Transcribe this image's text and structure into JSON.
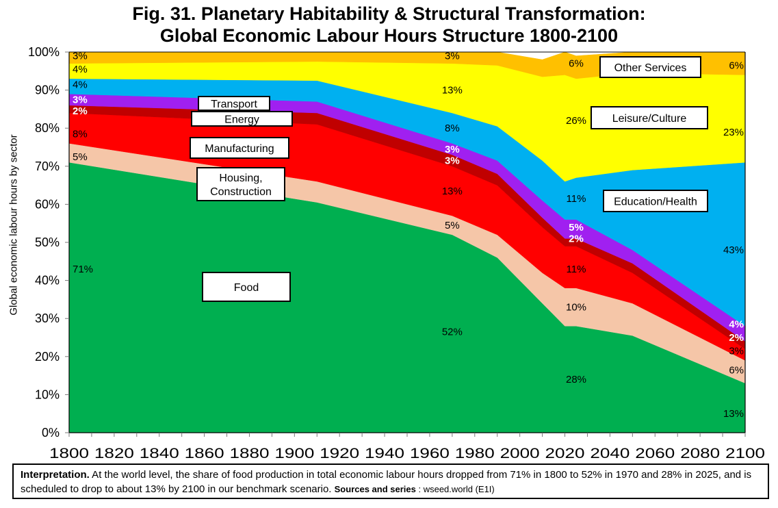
{
  "title_line1": "Fig. 31. Planetary Habitability & Structural Transformation:",
  "title_line2": "Global Economic Labour Hours Structure 1800-2100",
  "interpretation": {
    "lead": "Interpretation.",
    "text": " At the world level, the share of food production in total economic labour hours dropped from 71% in 1800 to 52% in 1970 and 28% in 2025, and is scheduled to drop to about 13% by 2100 in our benchmark scenario. ",
    "sources_label": "Sources and series",
    "sources_value": " : wseed.world (E1I)"
  },
  "chart_data": {
    "type": "area",
    "stacked": true,
    "title": "Fig. 31. Planetary Habitability & Structural Transformation: Global Economic Labour Hours Structure 1800-2100",
    "xlabel": "",
    "ylabel": "Global economic labour hours by sector",
    "xlim": [
      1800,
      2100
    ],
    "ylim": [
      0,
      100
    ],
    "x_ticks": [
      1800,
      1820,
      1840,
      1860,
      1880,
      1900,
      1920,
      1940,
      1960,
      1980,
      2000,
      2020,
      2040,
      2060,
      2080,
      2100
    ],
    "y_ticks": [
      "0%",
      "10%",
      "20%",
      "30%",
      "40%",
      "50%",
      "60%",
      "70%",
      "80%",
      "90%",
      "100%"
    ],
    "grid": false,
    "x": [
      1800,
      1910,
      1970,
      1990,
      2010,
      2020,
      2025,
      2050,
      2100
    ],
    "series": [
      {
        "name": "Food",
        "color": "#00AF50",
        "values": [
          71,
          60.5,
          52,
          46,
          34,
          28,
          28,
          25.5,
          13
        ]
      },
      {
        "name": "Housing, Construction",
        "color": "#F5C6A8",
        "values": [
          5,
          5.5,
          5,
          6,
          8,
          10,
          10,
          8.5,
          6
        ]
      },
      {
        "name": "Manufacturing",
        "color": "#FF0000",
        "values": [
          8,
          15,
          13,
          13,
          12,
          11,
          11,
          8,
          3
        ]
      },
      {
        "name": "Energy",
        "color": "#C00000",
        "values": [
          2,
          3,
          3,
          3,
          2.5,
          2,
          2,
          2.5,
          2
        ]
      },
      {
        "name": "Transport",
        "color": "#A020F0",
        "values": [
          3,
          3,
          3,
          3.5,
          4.5,
          5,
          5,
          3.5,
          4
        ]
      },
      {
        "name": "Education/Health",
        "color": "#00B0F0",
        "values": [
          4,
          5.5,
          8,
          9,
          10.5,
          10,
          11,
          21,
          43
        ]
      },
      {
        "name": "Leisure/Culture",
        "color": "#FFFF00",
        "values": [
          4,
          5,
          13,
          16,
          22,
          28,
          26,
          25.5,
          23
        ]
      },
      {
        "name": "Other Services",
        "color": "#FFC000",
        "values": [
          3,
          2.5,
          3,
          3.5,
          4.5,
          6,
          6,
          5.5,
          6
        ]
      }
    ],
    "data_labels": [
      {
        "text": "71%",
        "x": 1800,
        "y": 43,
        "color": "#000"
      },
      {
        "text": "5%",
        "x": 1800,
        "y": 72.5,
        "color": "#000"
      },
      {
        "text": "8%",
        "x": 1800,
        "y": 78.5,
        "color": "#000"
      },
      {
        "text": "2%",
        "x": 1800,
        "y": 84.5,
        "color": "#fff"
      },
      {
        "text": "3%",
        "x": 1800,
        "y": 87.5,
        "color": "#fff"
      },
      {
        "text": "4%",
        "x": 1800,
        "y": 91.5,
        "color": "#000"
      },
      {
        "text": "4%",
        "x": 1800,
        "y": 95.5,
        "color": "#000"
      },
      {
        "text": "3%",
        "x": 1800,
        "y": 99,
        "color": "#000"
      },
      {
        "text": "52%",
        "x": 1970,
        "y": 26.5,
        "color": "#000"
      },
      {
        "text": "5%",
        "x": 1970,
        "y": 54.5,
        "color": "#000"
      },
      {
        "text": "13%",
        "x": 1970,
        "y": 63.5,
        "color": "#000"
      },
      {
        "text": "3%",
        "x": 1970,
        "y": 71.5,
        "color": "#fff"
      },
      {
        "text": "3%",
        "x": 1970,
        "y": 74.5,
        "color": "#fff"
      },
      {
        "text": "8%",
        "x": 1970,
        "y": 80,
        "color": "#000"
      },
      {
        "text": "13%",
        "x": 1970,
        "y": 90,
        "color": "#000"
      },
      {
        "text": "3%",
        "x": 1970,
        "y": 99,
        "color": "#000"
      },
      {
        "text": "28%",
        "x": 2025,
        "y": 14,
        "color": "#000"
      },
      {
        "text": "10%",
        "x": 2025,
        "y": 33,
        "color": "#000"
      },
      {
        "text": "11%",
        "x": 2025,
        "y": 43,
        "color": "#000"
      },
      {
        "text": "2%",
        "x": 2025,
        "y": 51,
        "color": "#fff"
      },
      {
        "text": "5%",
        "x": 2025,
        "y": 54,
        "color": "#fff"
      },
      {
        "text": "11%",
        "x": 2025,
        "y": 61.5,
        "color": "#000"
      },
      {
        "text": "26%",
        "x": 2025,
        "y": 82,
        "color": "#000"
      },
      {
        "text": "6%",
        "x": 2025,
        "y": 97,
        "color": "#000"
      },
      {
        "text": "13%",
        "x": 2100,
        "y": 5,
        "color": "#000"
      },
      {
        "text": "6%",
        "x": 2100,
        "y": 16.5,
        "color": "#000"
      },
      {
        "text": "3%",
        "x": 2100,
        "y": 21.5,
        "color": "#000"
      },
      {
        "text": "2%",
        "x": 2100,
        "y": 25,
        "color": "#fff"
      },
      {
        "text": "4%",
        "x": 2100,
        "y": 28.5,
        "color": "#fff"
      },
      {
        "text": "43%",
        "x": 2100,
        "y": 48,
        "color": "#000"
      },
      {
        "text": "23%",
        "x": 2100,
        "y": 79,
        "color": "#000"
      },
      {
        "text": "6%",
        "x": 2100,
        "y": 96.5,
        "color": "#000"
      }
    ],
    "annotations": [
      {
        "text": "Food",
        "lines": [
          "Food"
        ]
      },
      {
        "text": "Housing, Construction",
        "lines": [
          "Housing,",
          "Construction"
        ]
      },
      {
        "text": "Manufacturing",
        "lines": [
          "Manufacturing"
        ]
      },
      {
        "text": "Energy",
        "lines": [
          "Energy"
        ]
      },
      {
        "text": "Transport",
        "lines": [
          "Transport"
        ]
      },
      {
        "text": "Education/Health",
        "lines": [
          "Education/Health"
        ]
      },
      {
        "text": "Leisure/Culture",
        "lines": [
          "Leisure/Culture"
        ]
      },
      {
        "text": "Other Services",
        "lines": [
          "Other Services"
        ]
      }
    ]
  }
}
